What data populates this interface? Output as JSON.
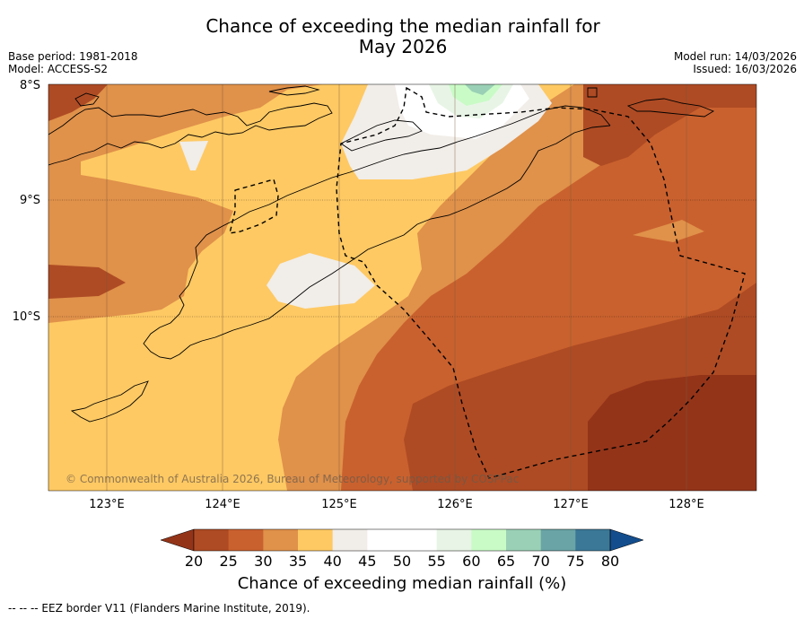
{
  "title": {
    "line1": "Chance of exceeding the median rainfall for",
    "line2": "May 2026"
  },
  "meta_left": {
    "base_period": "Base period: 1981-2018",
    "model": "Model: ACCESS-S2"
  },
  "meta_right": {
    "model_run": "Model run: 14/03/2026",
    "issued": "Issued: 16/03/2026"
  },
  "map": {
    "lat_labels": [
      "8°S",
      "9°S",
      "10°S"
    ],
    "lon_labels": [
      "123°E",
      "124°E",
      "125°E",
      "126°E",
      "127°E",
      "128°E"
    ],
    "copyright": "© Commonwealth of Australia 2026, Bureau of Meteorology, supported by COSPPac",
    "colors": {
      "c20": "#ae4b24",
      "c25": "#c9612e",
      "c30": "#e0914a",
      "c35": "#fec963",
      "c40": "#f1ede8",
      "c45": "#ffffff",
      "c55": "#e8f5e6",
      "c60": "#c9fbc7",
      "c65": "#9ad0b5",
      "below20": "#933419"
    }
  },
  "colorbar": {
    "tick_labels": [
      "20",
      "25",
      "30",
      "35",
      "40",
      "45",
      "50",
      "55",
      "60",
      "65",
      "70",
      "75",
      "80"
    ],
    "colors": [
      "#933419",
      "#ae4b24",
      "#c9612e",
      "#e0914a",
      "#fec963",
      "#f1ede8",
      "#ffffff",
      "#ffffff",
      "#e8f5e6",
      "#c9fbc7",
      "#9ad0b5",
      "#6aa4a6",
      "#3b7897",
      "#134d8d"
    ],
    "label": "Chance of exceeding median rainfall (%)"
  },
  "footer": "-- -- -- EEZ border V11 (Flanders Marine Institute, 2019)."
}
